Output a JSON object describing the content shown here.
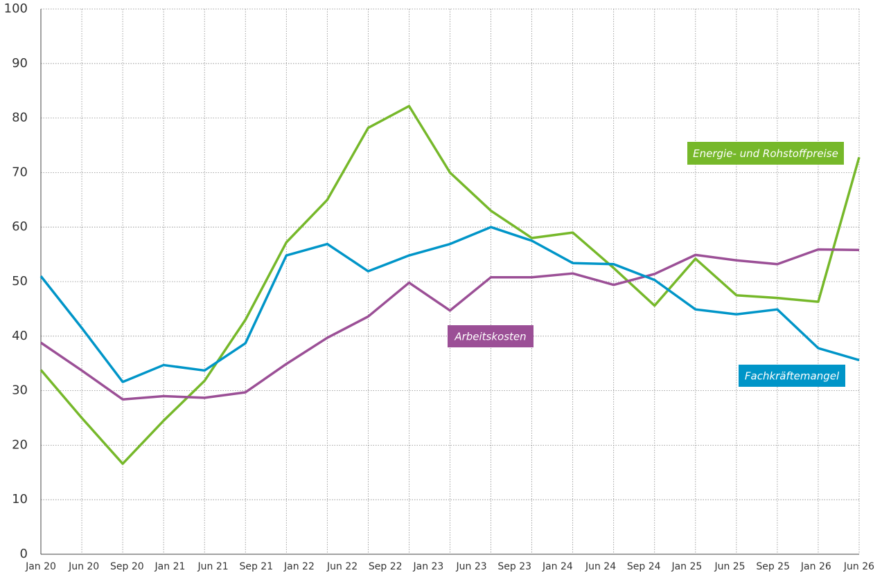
{
  "chart_data": {
    "type": "line",
    "categories": [
      "Jan 20",
      "Jun 20",
      "Sep 20",
      "Jan 21",
      "Jun 21",
      "Sep 21",
      "Jan 22",
      "Jun 22",
      "Sep 22",
      "Jan 23",
      "Jun 23",
      "Sep 23",
      "Jan 24",
      "Jun 24",
      "Sep 24",
      "Jan 25",
      "Jun 25",
      "Sep 25",
      "Jan 26",
      "Jun 26",
      null
    ],
    "series": [
      {
        "name": "Energie- und Rohstoffpreise",
        "color": "#76b82a",
        "values": [
          33.8,
          25,
          16.6,
          24.5,
          31.8,
          43,
          57.2,
          65,
          78.2,
          82.2,
          70,
          63,
          58,
          59,
          52.5,
          45.6,
          54.2,
          47.5,
          47,
          46.3,
          72.8
        ]
      },
      {
        "name": "Arbeitskosten",
        "color": "#9b4f96",
        "values": [
          38.8,
          33.7,
          28.4,
          29,
          28.7,
          29.7,
          34.9,
          39.7,
          43.6,
          49.8,
          44.7,
          50.8,
          50.8,
          51.5,
          49.4,
          51.4,
          54.9,
          53.9,
          53.2,
          55.9,
          55.8
        ]
      },
      {
        "name": "Fachkräftemangel",
        "color": "#0095c8",
        "values": [
          51,
          41.5,
          31.6,
          34.7,
          33.7,
          38.7,
          54.8,
          56.9,
          51.9,
          54.8,
          56.9,
          60,
          57.5,
          53.4,
          53.2,
          50.3,
          44.9,
          44,
          44.9,
          37.8,
          35.6
        ]
      }
    ],
    "ylim": [
      0,
      100
    ],
    "yticks": [
      0,
      10,
      20,
      30,
      40,
      50,
      60,
      70,
      80,
      90,
      100
    ],
    "grid": true
  }
}
